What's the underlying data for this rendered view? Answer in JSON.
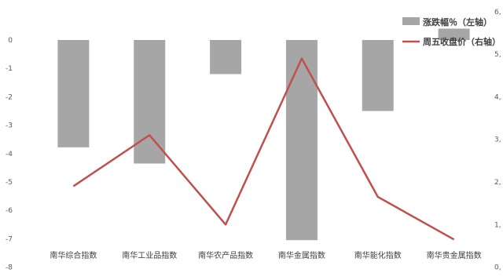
{
  "chart_data": {
    "type": "bar",
    "categories": [
      "南华综合指数",
      "南华工业品指数",
      "南华农产品指数",
      "南华金属指数",
      "南华能化指数",
      "南华贵金属指数"
    ],
    "series": [
      {
        "name": "涨跌幅％（左轴）",
        "type": "bar",
        "axis": "left",
        "color": "#a6a6a6",
        "values": [
          -3.78,
          -4.35,
          -1.2,
          -7.05,
          -2.5,
          0.4
        ]
      },
      {
        "name": "周五收盘价（右轴）",
        "type": "line",
        "axis": "right",
        "color": "#c0504d",
        "values": [
          1900,
          3100,
          1000,
          4900,
          1650,
          650
        ]
      }
    ],
    "left_axis": {
      "min": -8,
      "max": 0,
      "ticks": [
        0,
        -1,
        -2,
        -3,
        -4,
        -5,
        -6,
        -7,
        -8
      ]
    },
    "right_axis": {
      "min": 0,
      "max": 6000,
      "ticks": [
        0,
        1000,
        2000,
        3000,
        4000,
        5000,
        6000
      ],
      "tick_labels": [
        "0,",
        "1,",
        "2,",
        "3,",
        "4,",
        "5,",
        "6,"
      ]
    },
    "legend_position": "top-right",
    "grid": false
  }
}
